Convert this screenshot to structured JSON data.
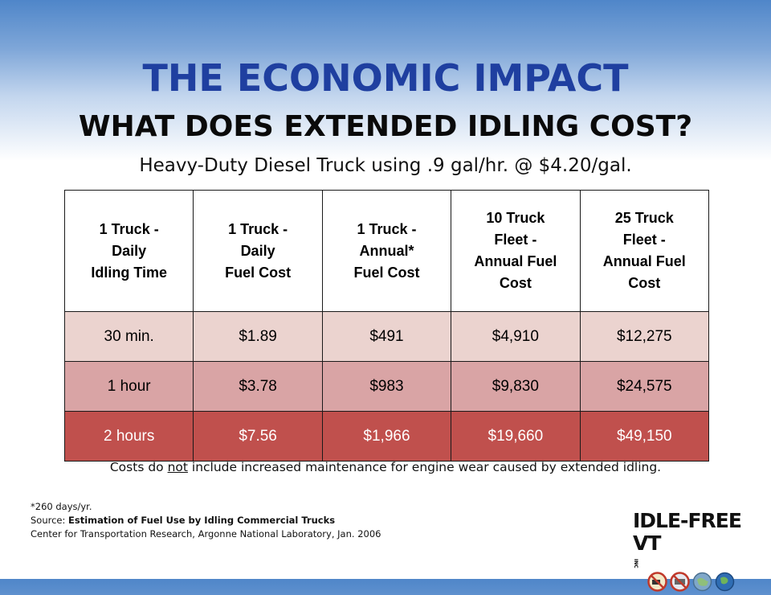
{
  "header": {
    "title": "THE ECONOMIC IMPACT",
    "subtitle": "WHAT DOES EXTENDED IDLING COST?",
    "detail": "Heavy-Duty Diesel Truck using .9 gal/hr. @ $4.20/gal."
  },
  "table": {
    "headers": [
      [
        "1 Truck -",
        "Daily",
        "Idling Time"
      ],
      [
        "1 Truck -",
        "Daily",
        "Fuel Cost"
      ],
      [
        "1 Truck -",
        "Annual*",
        "Fuel Cost"
      ],
      [
        "10 Truck",
        "Fleet -",
        "Annual Fuel",
        "Cost"
      ],
      [
        "25 Truck",
        "Fleet -",
        "Annual Fuel",
        "Cost"
      ]
    ],
    "rows": [
      [
        "30 min.",
        "$1.89",
        "$491",
        "$4,910",
        "$12,275"
      ],
      [
        "1 hour",
        "$3.78",
        "$983",
        "$9,830",
        "$24,575"
      ],
      [
        "2 hours",
        "$7.56",
        "$1,966",
        "$19,660",
        "$49,150"
      ]
    ],
    "row_colors": [
      "#ebd3cf",
      "#d9a4a5",
      "#c0504d"
    ]
  },
  "note": {
    "before": "Costs do ",
    "underlined": "not",
    "after": " include increased maintenance for engine wear caused by extended idling."
  },
  "footer": {
    "line1": "*260 days/yr.",
    "source_label": "Source: ",
    "source_title": "Estimation of Fuel Use by Idling Commercial Trucks",
    "line3": "Center for Transportation Research, Argonne National Laboratory, Jan. 2006"
  },
  "logo": {
    "text": "IDLE-FREE VT",
    "suffix": "INC",
    "icons": [
      "no-idling-truck-icon",
      "no-idling-bus-icon",
      "globe-icon",
      "earth-icon"
    ]
  },
  "colors": {
    "title": "#1f3fa0",
    "banner_top": "#4f86c9"
  }
}
